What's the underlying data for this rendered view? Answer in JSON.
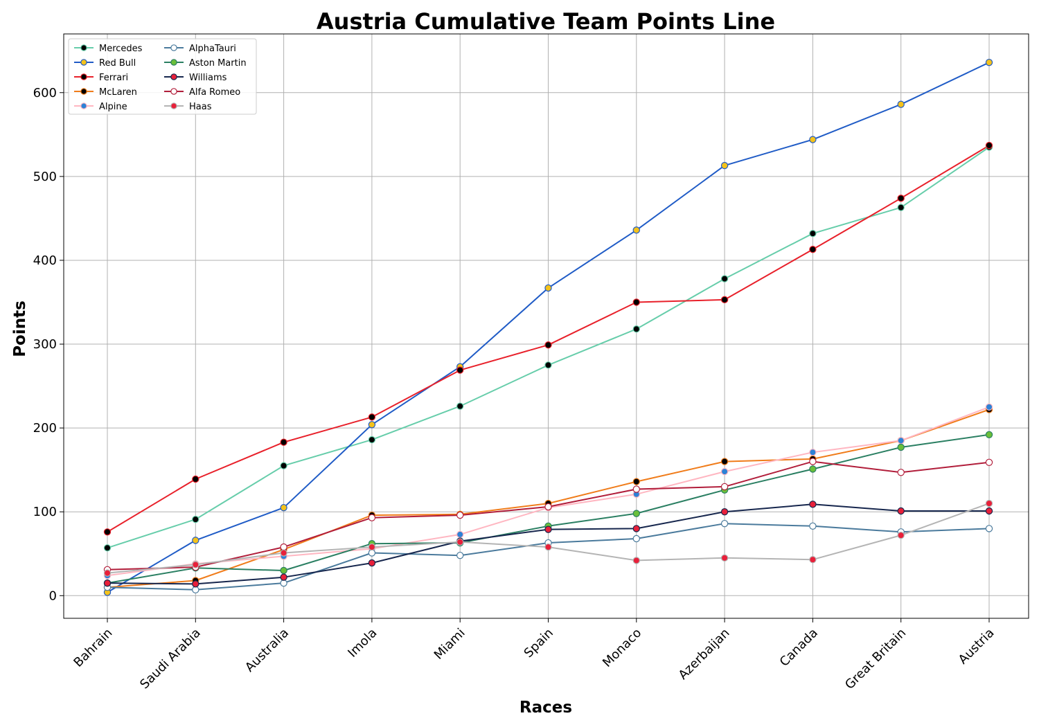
{
  "chart_data": {
    "type": "line",
    "title": "Austria Cumulative Team Points Line",
    "xlabel": "Races",
    "ylabel": "Points",
    "categories": [
      "Bahrain",
      "Saudi Arabia",
      "Australia",
      "Imola",
      "Miami",
      "Spain",
      "Monaco",
      "Azerbaijan",
      "Canada",
      "Great Britain",
      "Austria"
    ],
    "ylim": [
      -27,
      670
    ],
    "yticks": [
      0,
      100,
      200,
      300,
      400,
      500,
      600
    ],
    "grid": true,
    "legend_position": "top-left",
    "legend_columns": 2,
    "series": [
      {
        "name": "Mercedes",
        "color": "#66cdaa",
        "marker_face": "#000000",
        "marker_edge": "#66cdaa",
        "values": [
          57,
          91,
          155,
          186,
          226,
          275,
          318,
          378,
          432,
          463,
          535
        ]
      },
      {
        "name": "Red Bull",
        "color": "#1f5bc6",
        "marker_face": "#f4c21b",
        "marker_edge": "#1f5bc6",
        "values": [
          4,
          66,
          105,
          204,
          273,
          367,
          436,
          513,
          544,
          586,
          636
        ]
      },
      {
        "name": "Ferrari",
        "color": "#e8202a",
        "marker_face": "#000000",
        "marker_edge": "#e8202a",
        "values": [
          76,
          139,
          183,
          213,
          269,
          299,
          350,
          353,
          413,
          474,
          537
        ]
      },
      {
        "name": "McLaren",
        "color": "#f07c1a",
        "marker_face": "#000000",
        "marker_edge": "#f07c1a",
        "values": [
          10,
          18,
          55,
          96,
          97,
          110,
          136,
          160,
          163,
          185,
          222
        ]
      },
      {
        "name": "Alpine",
        "color": "#ffb6c1",
        "marker_face": "#2d82d6",
        "marker_edge": "#ffb6c1",
        "values": [
          24,
          38,
          47,
          56,
          73,
          105,
          121,
          148,
          171,
          185,
          225
        ]
      },
      {
        "name": "AlphaTauri",
        "color": "#4a7a9c",
        "marker_face": "#ffffff",
        "marker_edge": "#4a7a9c",
        "values": [
          10,
          7,
          15,
          51,
          48,
          63,
          68,
          86,
          83,
          76,
          80
        ]
      },
      {
        "name": "Aston Martin",
        "color": "#2a7f62",
        "marker_face": "#6abf3a",
        "marker_edge": "#2a7f62",
        "values": [
          15,
          33,
          30,
          62,
          63,
          83,
          98,
          126,
          151,
          177,
          192
        ]
      },
      {
        "name": "Williams",
        "color": "#16264d",
        "marker_face": "#e8203a",
        "marker_edge": "#16264d",
        "values": [
          15,
          14,
          22,
          39,
          65,
          79,
          80,
          100,
          109,
          101,
          101
        ]
      },
      {
        "name": "Alfa Romeo",
        "color": "#b11d3a",
        "marker_face": "#ffffff",
        "marker_edge": "#b11d3a",
        "values": [
          31,
          34,
          58,
          93,
          96,
          106,
          127,
          130,
          160,
          147,
          159
        ]
      },
      {
        "name": "Haas",
        "color": "#b4b4b4",
        "marker_face": "#e8203a",
        "marker_edge": "#b4b4b4",
        "values": [
          27,
          37,
          51,
          58,
          64,
          58,
          42,
          45,
          43,
          72,
          110
        ]
      }
    ]
  }
}
